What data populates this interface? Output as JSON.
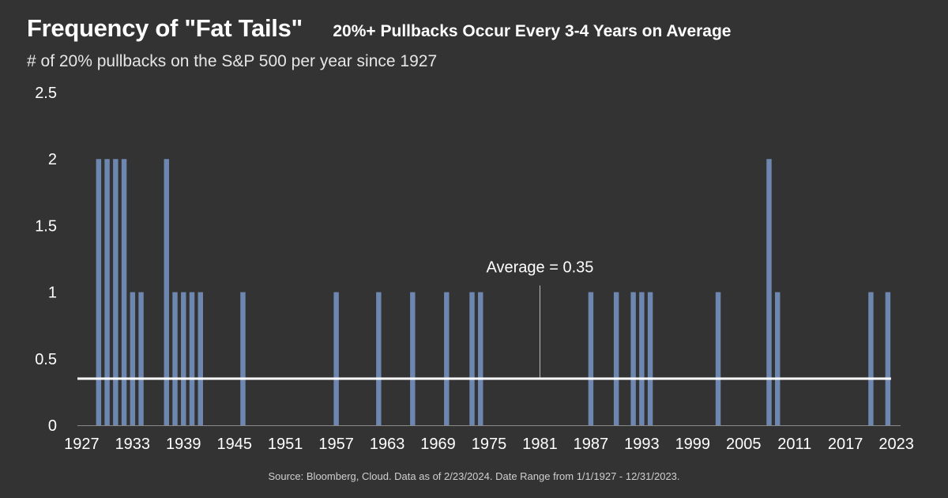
{
  "header": {
    "title": "Frequency of \"Fat Tails\"",
    "headline": "20%+ Pullbacks Occur Every 3-4 Years on Average",
    "subtitle": "# of 20% pullbacks on the S&P 500 per year since 1927"
  },
  "footer": {
    "source": "Source: Bloomberg, Cloud. Data as of 2/23/2024. Date Range from 1/1/1927 - 12/31/2023."
  },
  "colors": {
    "background": "#333333",
    "bar": "#6d87b0",
    "average_line": "#ffffff"
  },
  "chart_data": {
    "type": "bar",
    "title": "Frequency of \"Fat Tails\"",
    "ylabel": "",
    "xlabel": "",
    "ylim": [
      0,
      2.5
    ],
    "yticks": [
      0,
      0.5,
      1,
      1.5,
      2,
      2.5
    ],
    "ytick_labels": [
      "0",
      "0.5",
      "1",
      "1.5",
      "2",
      "2.5"
    ],
    "x_range": [
      1927,
      2023
    ],
    "xticks": [
      1927,
      1933,
      1939,
      1945,
      1951,
      1957,
      1963,
      1969,
      1975,
      1981,
      1987,
      1993,
      1999,
      2005,
      2011,
      2017,
      2023
    ],
    "grid": false,
    "bars": [
      {
        "year": 1929,
        "value": 2
      },
      {
        "year": 1930,
        "value": 2
      },
      {
        "year": 1931,
        "value": 2
      },
      {
        "year": 1932,
        "value": 2
      },
      {
        "year": 1933,
        "value": 1
      },
      {
        "year": 1934,
        "value": 1
      },
      {
        "year": 1937,
        "value": 2
      },
      {
        "year": 1938,
        "value": 1
      },
      {
        "year": 1939,
        "value": 1
      },
      {
        "year": 1940,
        "value": 1
      },
      {
        "year": 1941,
        "value": 1
      },
      {
        "year": 1946,
        "value": 1
      },
      {
        "year": 1957,
        "value": 1
      },
      {
        "year": 1962,
        "value": 1
      },
      {
        "year": 1966,
        "value": 1
      },
      {
        "year": 1970,
        "value": 1
      },
      {
        "year": 1973,
        "value": 1
      },
      {
        "year": 1974,
        "value": 1
      },
      {
        "year": 1987,
        "value": 1
      },
      {
        "year": 1990,
        "value": 1
      },
      {
        "year": 1992,
        "value": 1
      },
      {
        "year": 1993,
        "value": 1
      },
      {
        "year": 1994,
        "value": 1
      },
      {
        "year": 2002,
        "value": 1
      },
      {
        "year": 2008,
        "value": 2
      },
      {
        "year": 2009,
        "value": 1
      },
      {
        "year": 2020,
        "value": 1
      },
      {
        "year": 2022,
        "value": 1
      }
    ],
    "average": {
      "value": 0.35,
      "label": "Average = 0.35",
      "label_year": 1981
    }
  }
}
